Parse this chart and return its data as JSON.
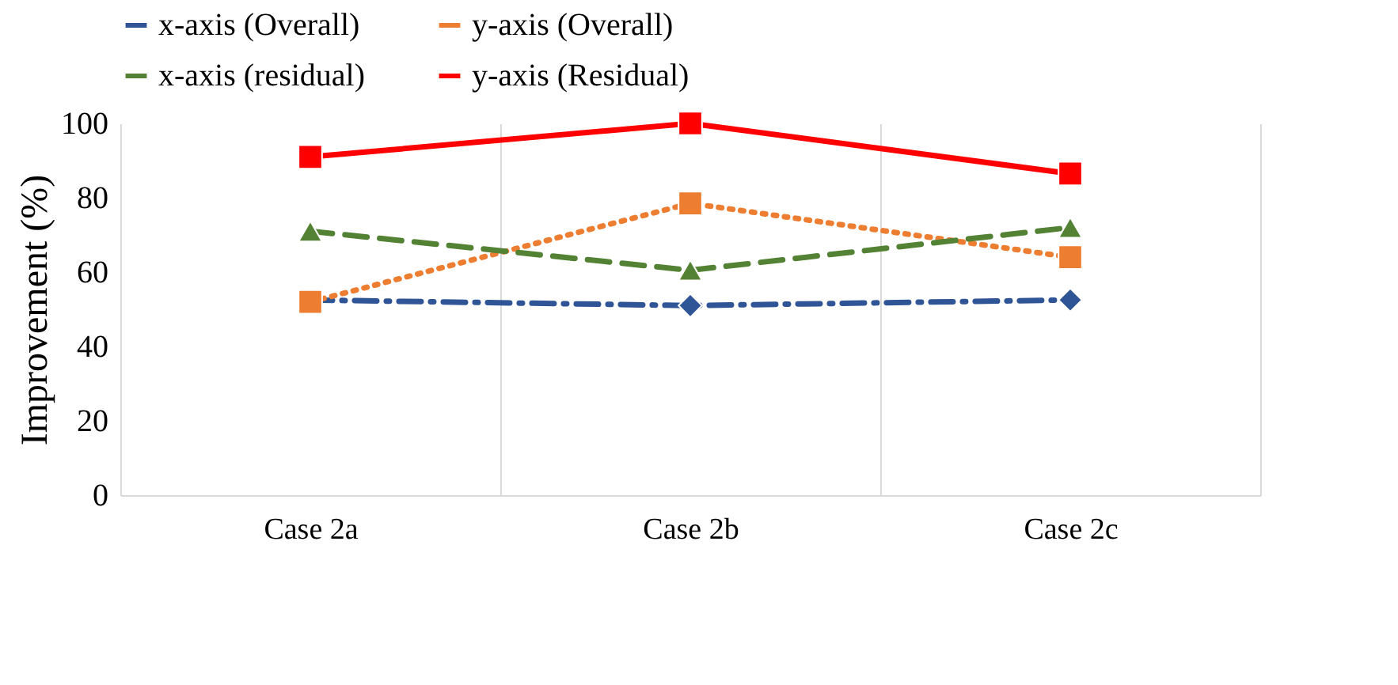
{
  "chart_data": {
    "type": "line",
    "ylabel": "Improvement (%)",
    "categories": [
      "Case 2a",
      "Case 2b",
      "Case 2c"
    ],
    "series": [
      {
        "name": "x-axis (Overall)",
        "color": "#2f5597",
        "marker": "diamond",
        "line_style": "dashdot",
        "values": [
          52.5,
          51,
          52.5
        ]
      },
      {
        "name": "y-axis (Overall)",
        "color": "#ed7d31",
        "marker": "square",
        "line_style": "dotted",
        "values": [
          52,
          78.5,
          64
        ]
      },
      {
        "name": "x-axis (residual)",
        "color": "#548235",
        "marker": "triangle",
        "line_style": "dashed",
        "values": [
          71,
          60.5,
          72
        ]
      },
      {
        "name": "y-axis (Residual)",
        "color": "#ff0000",
        "marker": "square",
        "line_style": "solid",
        "values": [
          91,
          100,
          86.5
        ]
      }
    ],
    "ylim": [
      0,
      100
    ],
    "yticks": [
      0,
      20,
      40,
      60,
      80,
      100
    ],
    "grid": "x",
    "legend": "top"
  }
}
